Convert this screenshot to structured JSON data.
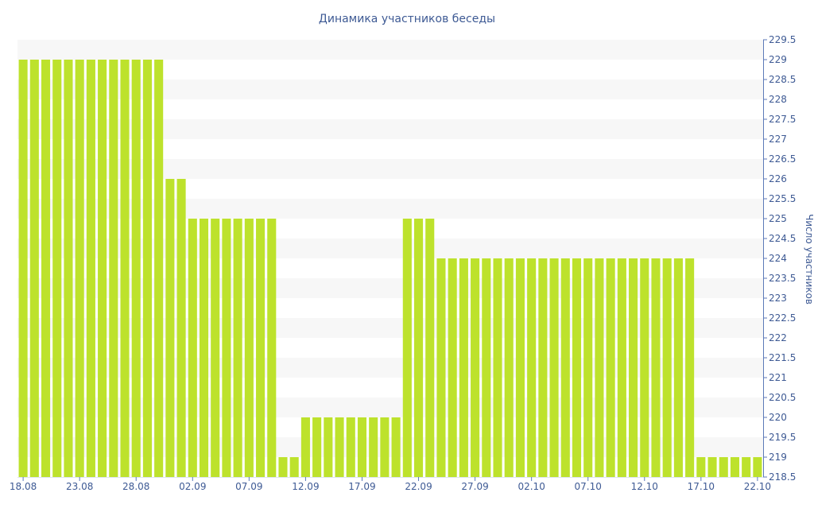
{
  "chart_data": {
    "type": "bar",
    "title": "Динамика участников беседы",
    "ylabel": "Число участников",
    "xlabel": "",
    "y_axis_side": "right",
    "ylim": [
      218.5,
      229.5
    ],
    "y_tick_step": 0.5,
    "grid": "alternating horizontal bands",
    "legend": "none",
    "x_tick_every": 5,
    "categories": [
      "18.08",
      "19.08",
      "20.08",
      "21.08",
      "22.08",
      "23.08",
      "24.08",
      "25.08",
      "26.08",
      "27.08",
      "28.08",
      "29.08",
      "30.08",
      "31.08",
      "01.09",
      "02.09",
      "03.09",
      "04.09",
      "05.09",
      "06.09",
      "07.09",
      "08.09",
      "09.09",
      "10.09",
      "11.09",
      "12.09",
      "13.09",
      "14.09",
      "15.09",
      "16.09",
      "17.09",
      "18.09",
      "19.09",
      "20.09",
      "21.09",
      "22.09",
      "23.09",
      "24.09",
      "25.09",
      "26.09",
      "27.09",
      "28.09",
      "29.09",
      "30.09",
      "01.10",
      "02.10",
      "03.10",
      "04.10",
      "05.10",
      "06.10",
      "07.10",
      "08.10",
      "09.10",
      "10.10",
      "11.10",
      "12.10",
      "13.10",
      "14.10",
      "15.10",
      "16.10",
      "17.10",
      "18.10",
      "19.10",
      "20.10",
      "21.10",
      "22.10"
    ],
    "series": [
      {
        "values": [
          229,
          229,
          229,
          229,
          229,
          229,
          229,
          229,
          229,
          229,
          229,
          229,
          229,
          226,
          226,
          225,
          225,
          225,
          225,
          225,
          225,
          225,
          225,
          219,
          219,
          220,
          220,
          220,
          220,
          220,
          220,
          220,
          220,
          220,
          225,
          225,
          225,
          224,
          224,
          224,
          224,
          224,
          224,
          224,
          224,
          224,
          224,
          224,
          224,
          224,
          224,
          224,
          224,
          224,
          224,
          224,
          224,
          224,
          224,
          224,
          219,
          219,
          219,
          219,
          219,
          219
        ]
      }
    ]
  },
  "colors": {
    "bar": "#bde22c",
    "band": "#f7f7f7",
    "axis": "#5c7ab8",
    "text": "#3e5a94"
  }
}
